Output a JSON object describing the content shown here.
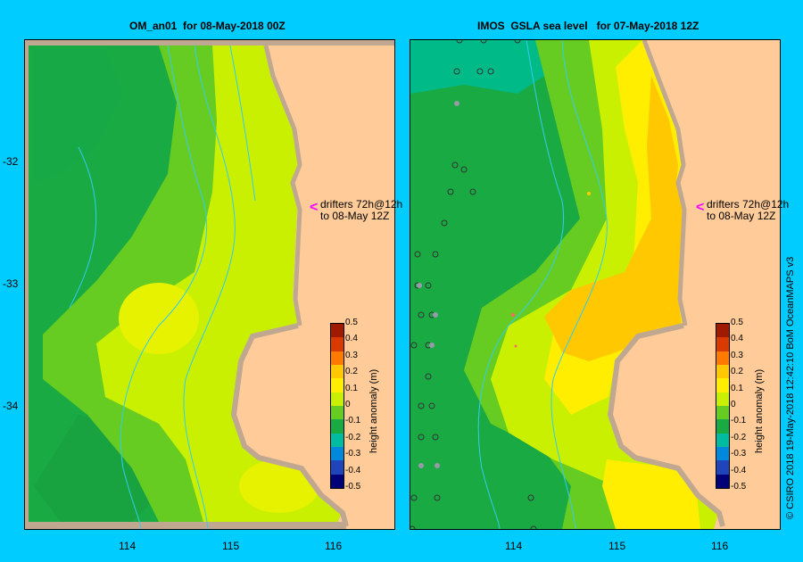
{
  "panels": [
    {
      "title": "OM_an01  for 08-May-2018 00Z"
    },
    {
      "title": "IMOS  GSLA sea level   for 07-May-2018 12Z"
    }
  ],
  "axes": {
    "y_ticks": [
      "-32",
      "-33",
      "-34"
    ],
    "x_ticks": [
      "114",
      "115",
      "116"
    ]
  },
  "drifter_note": "drifters 72h@12h\nto 08-May 12Z",
  "colorbar": {
    "label": "height anomaly (m)",
    "ticks": [
      "0.5",
      "0.4",
      "0.3",
      "0.2",
      "0.1",
      "0",
      "-0.1",
      "-0.2",
      "-0.3",
      "-0.4",
      "-0.5"
    ],
    "colors": [
      "#a01a00",
      "#d83a00",
      "#ff7a00",
      "#ffc800",
      "#ffee00",
      "#c8f000",
      "#66cc22",
      "#1aaa44",
      "#00bba0",
      "#0088dd",
      "#2244bb",
      "#000077"
    ]
  },
  "colors": {
    "background": "#00ccff",
    "land": "#ffcc99",
    "coast": "#c0a890",
    "arrow": "#ff00ff"
  },
  "credit": "© CSIRO 2018   19-May-2018 12:42:10 BoM OceanMAPS v3"
}
